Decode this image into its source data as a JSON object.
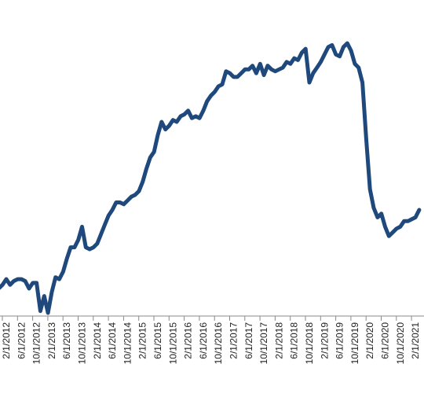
{
  "chart_data": {
    "type": "line",
    "title": "",
    "xlabel": "",
    "ylabel": "",
    "grid": false,
    "legend": "none",
    "line_color": "#1f497d",
    "x_tick_labels": [
      "2/1/2012",
      "6/1/2012",
      "10/1/2012",
      "2/1/2013",
      "6/1/2013",
      "10/1/2013",
      "2/1/2014",
      "6/1/2014",
      "10/1/2014",
      "2/1/2015",
      "6/1/2015",
      "10/1/2015",
      "2/1/2016",
      "6/1/2016",
      "10/1/2016",
      "2/1/2017",
      "6/1/2017",
      "10/1/2017",
      "2/1/2018",
      "6/1/2018",
      "10/1/2018",
      "2/1/2019",
      "6/1/2019",
      "10/1/2019",
      "2/1/2020",
      "6/1/2020",
      "10/1/2020",
      "2/1/2021"
    ],
    "series": [
      {
        "values": [
          [
            "2011-12-01",
            30
          ],
          [
            "2012-01-01",
            32
          ],
          [
            "2012-02-01",
            35
          ],
          [
            "2012-03-01",
            32
          ],
          [
            "2012-04-01",
            34
          ],
          [
            "2012-05-01",
            35
          ],
          [
            "2012-06-01",
            35
          ],
          [
            "2012-07-01",
            34
          ],
          [
            "2012-08-01",
            30
          ],
          [
            "2012-09-01",
            33
          ],
          [
            "2012-10-01",
            33
          ],
          [
            "2012-11-01",
            18
          ],
          [
            "2012-12-01",
            26
          ],
          [
            "2013-01-01",
            17
          ],
          [
            "2013-02-01",
            28
          ],
          [
            "2013-03-01",
            36
          ],
          [
            "2013-04-01",
            35
          ],
          [
            "2013-05-01",
            39
          ],
          [
            "2013-06-01",
            46
          ],
          [
            "2013-07-01",
            52
          ],
          [
            "2013-08-01",
            52
          ],
          [
            "2013-09-01",
            56
          ],
          [
            "2013-10-01",
            63
          ],
          [
            "2013-11-01",
            52
          ],
          [
            "2013-12-01",
            51
          ],
          [
            "2014-01-01",
            52
          ],
          [
            "2014-02-01",
            54
          ],
          [
            "2014-03-01",
            59
          ],
          [
            "2014-04-01",
            64
          ],
          [
            "2014-05-01",
            69
          ],
          [
            "2014-06-01",
            72
          ],
          [
            "2014-07-01",
            76
          ],
          [
            "2014-08-01",
            76
          ],
          [
            "2014-09-01",
            75
          ],
          [
            "2014-10-01",
            77
          ],
          [
            "2014-11-01",
            79
          ],
          [
            "2014-12-01",
            80
          ],
          [
            "2015-01-01",
            82
          ],
          [
            "2015-02-01",
            87
          ],
          [
            "2015-03-01",
            94
          ],
          [
            "2015-04-01",
            100
          ],
          [
            "2015-05-01",
            103
          ],
          [
            "2015-06-01",
            112
          ],
          [
            "2015-07-01",
            119
          ],
          [
            "2015-08-01",
            115
          ],
          [
            "2015-09-01",
            117
          ],
          [
            "2015-10-01",
            120
          ],
          [
            "2015-11-01",
            119
          ],
          [
            "2015-12-01",
            122
          ],
          [
            "2016-01-01",
            123
          ],
          [
            "2016-02-01",
            125
          ],
          [
            "2016-03-01",
            121
          ],
          [
            "2016-04-01",
            122
          ],
          [
            "2016-05-01",
            121
          ],
          [
            "2016-06-01",
            125
          ],
          [
            "2016-07-01",
            130
          ],
          [
            "2016-08-01",
            133
          ],
          [
            "2016-09-01",
            135
          ],
          [
            "2016-10-01",
            138
          ],
          [
            "2016-11-01",
            139
          ],
          [
            "2016-12-01",
            146
          ],
          [
            "2017-01-01",
            145
          ],
          [
            "2017-02-01",
            143
          ],
          [
            "2017-03-01",
            143
          ],
          [
            "2017-04-01",
            145
          ],
          [
            "2017-05-01",
            147
          ],
          [
            "2017-06-01",
            147
          ],
          [
            "2017-07-01",
            149
          ],
          [
            "2017-08-01",
            145
          ],
          [
            "2017-09-01",
            150
          ],
          [
            "2017-10-01",
            144
          ],
          [
            "2017-11-01",
            149
          ],
          [
            "2017-12-01",
            147
          ],
          [
            "2018-01-01",
            146
          ],
          [
            "2018-02-01",
            147
          ],
          [
            "2018-03-01",
            148
          ],
          [
            "2018-04-01",
            151
          ],
          [
            "2018-05-01",
            150
          ],
          [
            "2018-06-01",
            153
          ],
          [
            "2018-07-01",
            152
          ],
          [
            "2018-08-01",
            156
          ],
          [
            "2018-09-01",
            158
          ],
          [
            "2018-10-01",
            140
          ],
          [
            "2018-11-01",
            145
          ],
          [
            "2018-12-01",
            148
          ],
          [
            "2019-01-01",
            151
          ],
          [
            "2019-02-01",
            155
          ],
          [
            "2019-03-01",
            159
          ],
          [
            "2019-04-01",
            160
          ],
          [
            "2019-05-01",
            155
          ],
          [
            "2019-06-01",
            154
          ],
          [
            "2019-07-01",
            159
          ],
          [
            "2019-08-01",
            161
          ],
          [
            "2019-09-01",
            157
          ],
          [
            "2019-10-01",
            150
          ],
          [
            "2019-11-01",
            148
          ],
          [
            "2019-12-01",
            140
          ],
          [
            "2020-01-01",
            110
          ],
          [
            "2020-02-01",
            83
          ],
          [
            "2020-03-01",
            73
          ],
          [
            "2020-04-01",
            68
          ],
          [
            "2020-05-01",
            70
          ],
          [
            "2020-06-01",
            63
          ],
          [
            "2020-07-01",
            58
          ],
          [
            "2020-08-01",
            60
          ],
          [
            "2020-09-01",
            62
          ],
          [
            "2020-10-01",
            63
          ],
          [
            "2020-11-01",
            66
          ],
          [
            "2020-12-01",
            66
          ],
          [
            "2021-01-01",
            67
          ],
          [
            "2021-02-01",
            68
          ],
          [
            "2021-03-01",
            72
          ]
        ]
      }
    ]
  }
}
